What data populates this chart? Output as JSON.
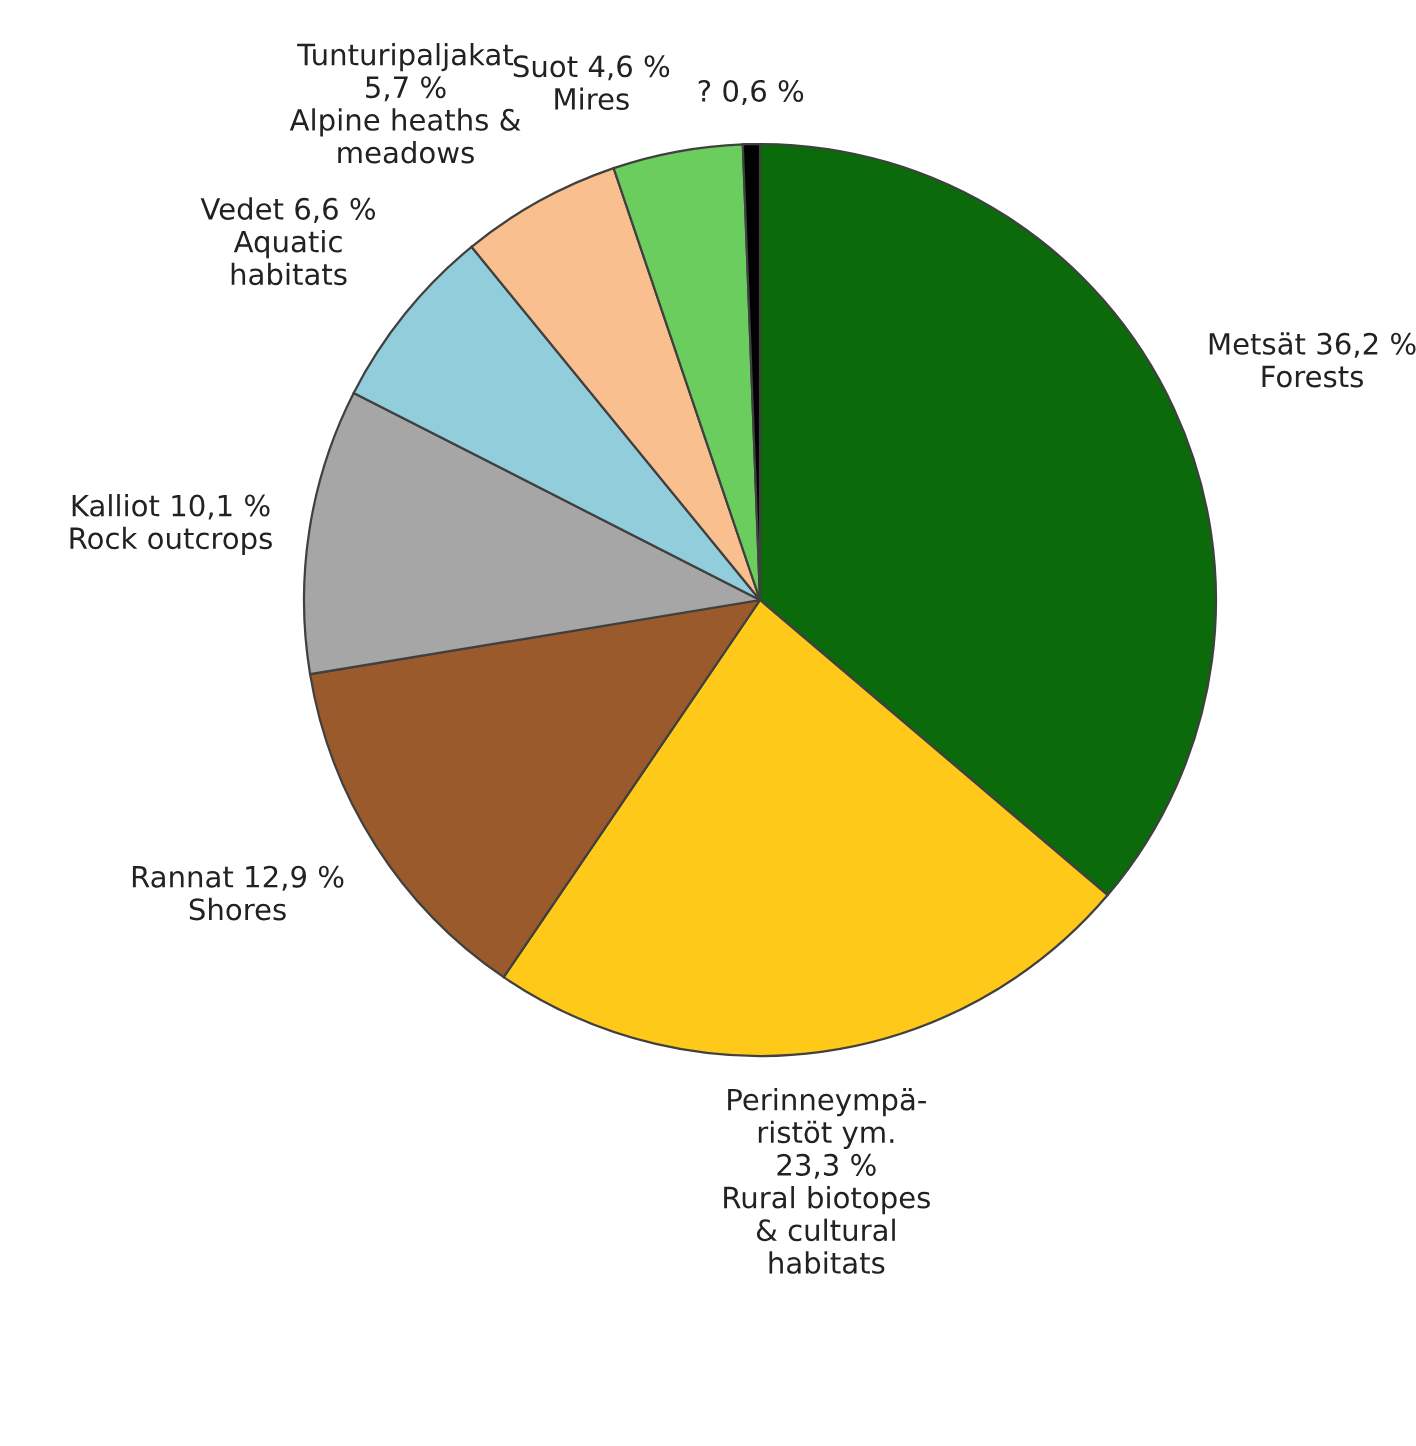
{
  "chart_data": {
    "type": "pie",
    "categories": [
      "Metsät 36,2 %\nForests",
      "Perinneympä-\nristöt ym.\n23,3 %\nRural biotopes\n& cultural\nhabitats",
      "Rannat 12,9 %\nShores",
      "Kalliot 10,1 %\nRock outcrops",
      "Vedet 6,6 %\nAquatic\nhabitats",
      "Tunturipaljakat\n5,7 %\nAlpine heaths &\nmeadows",
      "Suot 4,6 %\nMires",
      "? 0,6 %"
    ],
    "values": [
      36.2,
      23.3,
      12.9,
      10.1,
      6.6,
      5.7,
      4.6,
      0.6
    ],
    "colors": [
      "#0b6b0b",
      "#ffc91a",
      "#9b5a2c",
      "#a6a6a6",
      "#92cddc",
      "#fabf8f",
      "#6acd5e",
      "#000000"
    ]
  }
}
